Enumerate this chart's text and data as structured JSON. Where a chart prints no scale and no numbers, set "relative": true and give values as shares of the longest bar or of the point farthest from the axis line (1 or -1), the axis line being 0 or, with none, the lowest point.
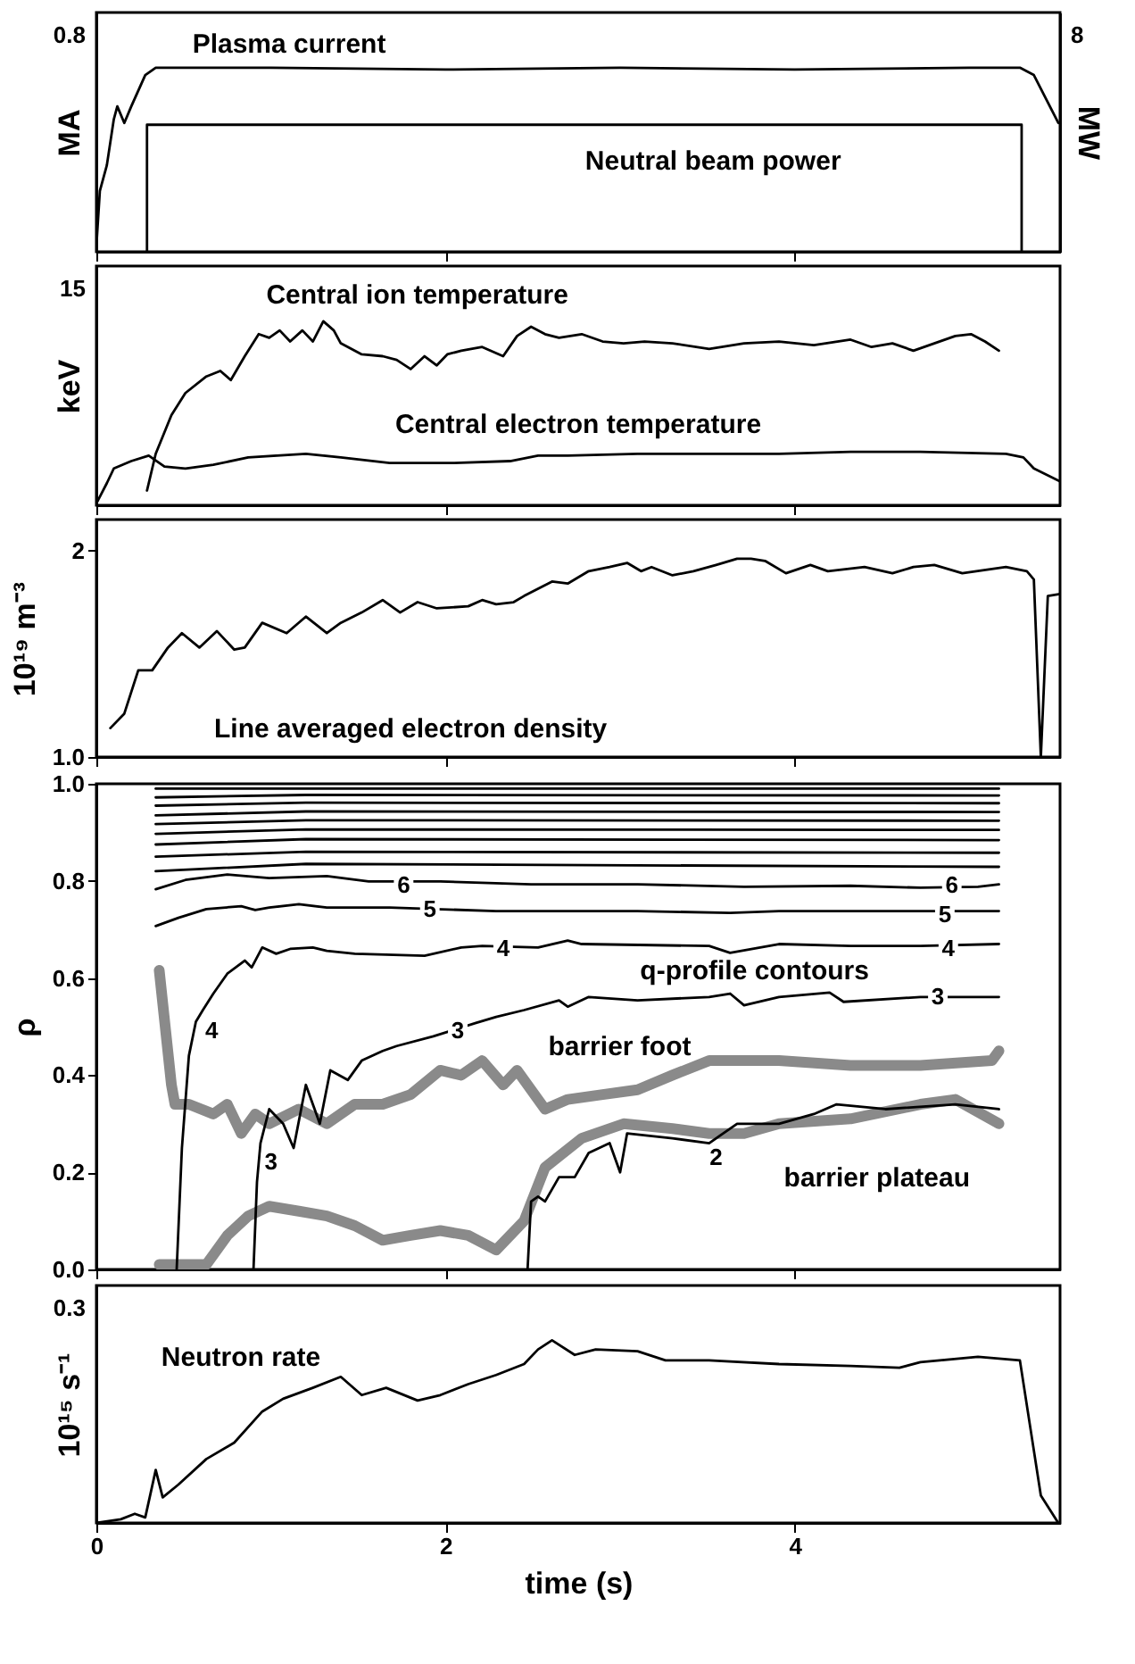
{
  "chart_data": [
    {
      "type": "line",
      "relative": true,
      "ylabel": "MA",
      "y2label": "MW",
      "xlim": [
        0,
        5.52
      ],
      "xticks": [
        0,
        2,
        4
      ],
      "tick_labels": false,
      "series": [
        {
          "color": "#000000",
          "x": [
            0,
            0.02,
            0.06,
            0.1,
            0.12,
            0.16,
            0.2,
            0.28,
            0.34,
            1.0,
            2.0,
            3.0,
            4.0,
            5.0,
            5.29,
            5.37,
            5.51
          ],
          "values": [
            0.03,
            0.33,
            0.47,
            0.72,
            0.79,
            0.7,
            0.79,
            0.96,
            1.0,
            1.0,
            0.99,
            1.0,
            0.99,
            1.0,
            1.0,
            0.96,
            0.7
          ]
        },
        {
          "color": "#000000",
          "axis": "y2",
          "x": [
            0.29,
            0.29,
            5.3,
            5.3
          ],
          "values": [
            0,
            0.69,
            0.69,
            0
          ]
        }
      ],
      "annotations": [
        "0.8",
        "8",
        "Plasma current",
        "Neutral beam power"
      ]
    },
    {
      "type": "line",
      "relative": true,
      "ylabel": "keV",
      "xlim": [
        0,
        5.52
      ],
      "xticks": [
        0,
        2,
        4
      ],
      "tick_labels": false,
      "series": [
        {
          "color": "#000000",
          "x": [
            0.29,
            0.34,
            0.43,
            0.51,
            0.63,
            0.71,
            0.77,
            0.85,
            0.93,
            0.99,
            1.05,
            1.11,
            1.18,
            1.24,
            1.3,
            1.36,
            1.4,
            1.52,
            1.64,
            1.72,
            1.8,
            1.88,
            1.95,
            2.01,
            2.09,
            2.21,
            2.33,
            2.41,
            2.49,
            2.57,
            2.65,
            2.78,
            2.9,
            3.02,
            3.14,
            3.3,
            3.51,
            3.71,
            3.91,
            4.11,
            4.32,
            4.44,
            4.56,
            4.68,
            4.8,
            4.92,
            5.01,
            5.09,
            5.17
          ],
          "values": [
            0.08,
            0.28,
            0.49,
            0.61,
            0.7,
            0.73,
            0.68,
            0.81,
            0.93,
            0.91,
            0.95,
            0.89,
            0.95,
            0.89,
            1.0,
            0.95,
            0.88,
            0.82,
            0.81,
            0.79,
            0.74,
            0.81,
            0.76,
            0.82,
            0.84,
            0.86,
            0.81,
            0.92,
            0.97,
            0.93,
            0.91,
            0.93,
            0.89,
            0.88,
            0.89,
            0.88,
            0.85,
            0.88,
            0.89,
            0.87,
            0.9,
            0.86,
            0.88,
            0.84,
            0.88,
            0.92,
            0.93,
            0.89,
            0.84
          ]
        },
        {
          "color": "#000000",
          "x": [
            0,
            0.06,
            0.1,
            0.2,
            0.3,
            0.39,
            0.51,
            0.67,
            0.87,
            1.2,
            1.4,
            1.68,
            2.05,
            2.37,
            2.53,
            2.7,
            3.1,
            3.51,
            3.91,
            4.32,
            4.72,
            5.21,
            5.31,
            5.37,
            5.52
          ],
          "values": [
            0.01,
            0.12,
            0.2,
            0.24,
            0.27,
            0.21,
            0.2,
            0.22,
            0.26,
            0.28,
            0.26,
            0.23,
            0.23,
            0.24,
            0.27,
            0.27,
            0.28,
            0.28,
            0.28,
            0.29,
            0.29,
            0.28,
            0.26,
            0.2,
            0.13
          ]
        }
      ],
      "annotations": [
        "15",
        "Central ion temperature",
        "Central electron temperature"
      ]
    },
    {
      "type": "line",
      "ylabel": "10¹⁹ m⁻³",
      "xlim": [
        0,
        5.52
      ],
      "xticks": [
        0,
        2,
        4
      ],
      "ylim": [
        1.0,
        2.15
      ],
      "yticks": [
        {
          "value": 1.0,
          "label": "1.0"
        },
        2
      ],
      "tick_labels": "y",
      "series": [
        {
          "color": "#000000",
          "x": [
            0.08,
            0.16,
            0.24,
            0.32,
            0.41,
            0.49,
            0.59,
            0.69,
            0.79,
            0.85,
            0.95,
            1.09,
            1.2,
            1.32,
            1.4,
            1.52,
            1.64,
            1.74,
            1.84,
            1.95,
            2.13,
            2.21,
            2.29,
            2.39,
            2.45,
            2.61,
            2.7,
            2.82,
            2.94,
            3.04,
            3.12,
            3.18,
            3.3,
            3.42,
            3.55,
            3.67,
            3.75,
            3.83,
            3.95,
            4.09,
            4.19,
            4.4,
            4.56,
            4.68,
            4.8,
            4.96,
            5.21,
            5.33,
            5.37,
            5.41,
            5.45,
            5.52
          ],
          "values": [
            1.14,
            1.21,
            1.42,
            1.42,
            1.53,
            1.6,
            1.53,
            1.61,
            1.52,
            1.53,
            1.65,
            1.6,
            1.68,
            1.6,
            1.65,
            1.7,
            1.76,
            1.7,
            1.75,
            1.72,
            1.73,
            1.76,
            1.74,
            1.75,
            1.78,
            1.85,
            1.84,
            1.9,
            1.92,
            1.94,
            1.9,
            1.92,
            1.88,
            1.9,
            1.93,
            1.96,
            1.96,
            1.95,
            1.89,
            1.93,
            1.9,
            1.92,
            1.89,
            1.92,
            1.93,
            1.89,
            1.92,
            1.9,
            1.86,
            1.0,
            1.78,
            1.79
          ]
        }
      ],
      "annotations": [
        "Line averaged electron density"
      ]
    },
    {
      "type": "line",
      "ylabel": "ρ",
      "xlim": [
        0,
        5.52
      ],
      "xticks": [
        0,
        2,
        4
      ],
      "ylim": [
        0,
        1.0
      ],
      "tick_labels": "y",
      "yticks": [
        {
          "value": 0,
          "label": "0.0"
        },
        {
          "value": 0.2,
          "label": "0.2"
        },
        {
          "value": 0.4,
          "label": "0.4"
        },
        {
          "value": 0.6,
          "label": "0.6"
        },
        {
          "value": 0.8,
          "label": "0.8"
        },
        {
          "value": 1.0,
          "label": "1.0"
        }
      ],
      "series": [
        {
          "color": "#8a8a8a",
          "x": [
            0.36,
            0.43,
            0.45,
            0.53,
            0.67,
            0.75,
            0.83,
            0.91,
            0.99,
            1.16,
            1.32,
            1.48,
            1.64,
            1.8,
            1.97,
            2.09,
            2.21,
            2.33,
            2.41,
            2.57,
            2.7,
            2.9,
            3.1,
            3.3,
            3.51,
            3.91,
            4.32,
            4.72,
            5.13,
            5.17
          ],
          "values": [
            0.616,
            0.38,
            0.34,
            0.34,
            0.32,
            0.34,
            0.28,
            0.32,
            0.3,
            0.33,
            0.3,
            0.34,
            0.34,
            0.36,
            0.41,
            0.4,
            0.43,
            0.38,
            0.41,
            0.33,
            0.35,
            0.36,
            0.37,
            0.4,
            0.43,
            0.43,
            0.42,
            0.42,
            0.43,
            0.45
          ]
        },
        {
          "color": "#8a8a8a",
          "x": [
            0.36,
            0.63,
            0.75,
            0.87,
            0.99,
            1.16,
            1.32,
            1.48,
            1.64,
            1.8,
            1.97,
            2.13,
            2.29,
            2.45,
            2.57,
            2.78,
            3.02,
            3.3,
            3.51,
            3.71,
            3.91,
            4.32,
            4.72,
            4.92,
            5.17
          ],
          "values": [
            0.01,
            0.01,
            0.07,
            0.11,
            0.13,
            0.12,
            0.11,
            0.09,
            0.06,
            0.07,
            0.08,
            0.07,
            0.04,
            0.1,
            0.21,
            0.27,
            0.3,
            0.29,
            0.28,
            0.28,
            0.3,
            0.31,
            0.34,
            0.35,
            0.3
          ]
        },
        {
          "color": "#000000",
          "x": [
            2.47,
            2.49,
            2.53,
            2.57,
            2.65,
            2.74,
            2.82,
            2.94,
            3.0,
            3.04,
            3.3,
            3.51,
            3.67,
            3.91,
            4.11,
            4.24,
            4.52,
            4.92,
            5.17
          ],
          "values": [
            0,
            0.14,
            0.15,
            0.14,
            0.19,
            0.19,
            0.24,
            0.26,
            0.2,
            0.28,
            0.27,
            0.26,
            0.3,
            0.3,
            0.32,
            0.34,
            0.33,
            0.34,
            0.33
          ]
        },
        {
          "color": "#000000",
          "x": [
            0.9,
            0.92,
            0.94,
            0.99,
            1.07,
            1.13,
            1.2,
            1.28,
            1.34,
            1.44,
            1.52,
            1.64,
            1.72,
            1.93,
            2.17,
            2.29,
            2.45,
            2.65,
            2.7,
            2.82,
            3.1,
            3.51,
            3.63,
            3.71,
            3.91,
            4.2,
            4.28,
            4.72,
            5.17
          ],
          "values": [
            0,
            0.18,
            0.26,
            0.33,
            0.3,
            0.25,
            0.38,
            0.3,
            0.41,
            0.39,
            0.43,
            0.45,
            0.46,
            0.48,
            0.507,
            0.52,
            0.534,
            0.554,
            0.541,
            0.561,
            0.554,
            0.561,
            0.568,
            0.544,
            0.561,
            0.57,
            0.551,
            0.561,
            0.561
          ]
        },
        {
          "color": "#000000",
          "x": [
            0.46,
            0.49,
            0.53,
            0.57,
            0.61,
            0.67,
            0.75,
            0.85,
            0.89,
            0.95,
            1.03,
            1.11,
            1.24,
            1.32,
            1.48,
            1.88,
            2.09,
            2.21,
            2.53,
            2.7,
            2.78,
            3.51,
            3.63,
            3.91,
            4.32,
            4.72,
            5.17
          ],
          "values": [
            0,
            0.25,
            0.44,
            0.51,
            0.534,
            0.568,
            0.609,
            0.636,
            0.622,
            0.663,
            0.65,
            0.66,
            0.663,
            0.656,
            0.65,
            0.646,
            0.663,
            0.666,
            0.663,
            0.677,
            0.67,
            0.666,
            0.652,
            0.67,
            0.666,
            0.666,
            0.67
          ]
        },
        {
          "color": "#000000",
          "x": [
            0.34,
            0.47,
            0.63,
            0.83,
            0.91,
            0.99,
            1.16,
            1.32,
            1.68,
            2.29,
            3.1,
            3.63,
            3.91,
            4.72,
            5.17
          ],
          "values": [
            0.707,
            0.724,
            0.742,
            0.748,
            0.74,
            0.745,
            0.752,
            0.745,
            0.745,
            0.738,
            0.738,
            0.734,
            0.738,
            0.738,
            0.738
          ]
        },
        {
          "color": "#000000",
          "x": [
            0.34,
            0.51,
            0.75,
            0.99,
            1.32,
            1.56,
            1.97,
            2.49,
            3.1,
            3.71,
            4.32,
            4.72,
            5.05,
            5.17
          ],
          "values": [
            0.783,
            0.802,
            0.813,
            0.806,
            0.81,
            0.799,
            0.799,
            0.793,
            0.793,
            0.788,
            0.79,
            0.786,
            0.788,
            0.793
          ]
        },
        {
          "color": "#000000",
          "x": [
            0.34,
            1.2,
            5.17
          ],
          "values": [
            0.82,
            0.835,
            0.829
          ]
        },
        {
          "color": "#000000",
          "x": [
            0.34,
            1.2,
            5.17
          ],
          "values": [
            0.85,
            0.86,
            0.858
          ]
        },
        {
          "color": "#000000",
          "x": [
            0.34,
            1.2,
            5.17
          ],
          "values": [
            0.875,
            0.886,
            0.884
          ]
        },
        {
          "color": "#000000",
          "x": [
            0.34,
            1.2,
            5.17
          ],
          "values": [
            0.897,
            0.906,
            0.905
          ]
        },
        {
          "color": "#000000",
          "x": [
            0.34,
            1.2,
            5.17
          ],
          "values": [
            0.917,
            0.925,
            0.924
          ]
        },
        {
          "color": "#000000",
          "x": [
            0.34,
            1.2,
            5.17
          ],
          "values": [
            0.935,
            0.943,
            0.942
          ]
        },
        {
          "color": "#000000",
          "x": [
            0.34,
            1.2,
            5.17
          ],
          "values": [
            0.955,
            0.961,
            0.96
          ]
        },
        {
          "color": "#000000",
          "x": [
            0.34,
            1.2,
            5.17
          ],
          "values": [
            0.972,
            0.977,
            0.976
          ]
        },
        {
          "color": "#000000",
          "x": [
            0.34,
            1.2,
            5.17
          ],
          "values": [
            0.99,
            0.99,
            0.99
          ]
        }
      ],
      "annotations": [
        "q-profile contours",
        "barrier foot",
        "barrier plateau",
        {
          "text": "6",
          "x": 1.76,
          "y": 0.79
        },
        {
          "text": "6",
          "x": 4.9,
          "y": 0.79
        },
        {
          "text": "5",
          "x": 1.91,
          "y": 0.74
        },
        {
          "text": "5",
          "x": 4.86,
          "y": 0.73
        },
        {
          "text": "4",
          "x": 2.33,
          "y": 0.66
        },
        {
          "text": "4",
          "x": 4.88,
          "y": 0.66
        },
        {
          "text": "4",
          "x": 0.66,
          "y": 0.49
        },
        {
          "text": "3",
          "x": 1.0,
          "y": 0.22
        },
        {
          "text": "3",
          "x": 2.07,
          "y": 0.49
        },
        {
          "text": "3",
          "x": 4.82,
          "y": 0.56
        },
        {
          "text": "2",
          "x": 3.55,
          "y": 0.23
        }
      ]
    },
    {
      "type": "line",
      "relative": true,
      "ylabel": "10¹⁵ s⁻¹",
      "xlabel": "time (s)",
      "xlim": [
        0,
        5.52
      ],
      "xticks": [
        0,
        2,
        4
      ],
      "tick_labels": "x",
      "series": [
        {
          "color": "#000000",
          "x": [
            0,
            0.14,
            0.22,
            0.28,
            0.34,
            0.38,
            0.47,
            0.63,
            0.79,
            0.95,
            1.07,
            1.24,
            1.4,
            1.52,
            1.66,
            1.84,
            1.97,
            2.13,
            2.29,
            2.45,
            2.53,
            2.61,
            2.74,
            2.86,
            3.1,
            3.26,
            3.51,
            3.91,
            4.32,
            4.6,
            4.72,
            5.05,
            5.29,
            5.35,
            5.41,
            5.51
          ],
          "values": [
            0,
            0.02,
            0.05,
            0.03,
            0.29,
            0.14,
            0.21,
            0.35,
            0.44,
            0.61,
            0.68,
            0.74,
            0.8,
            0.7,
            0.74,
            0.67,
            0.7,
            0.76,
            0.81,
            0.87,
            0.95,
            1.0,
            0.92,
            0.95,
            0.94,
            0.89,
            0.89,
            0.87,
            0.86,
            0.85,
            0.88,
            0.91,
            0.89,
            0.52,
            0.15,
            0.0
          ]
        }
      ],
      "annotations": [
        "0.3",
        "Neutron rate"
      ]
    }
  ]
}
